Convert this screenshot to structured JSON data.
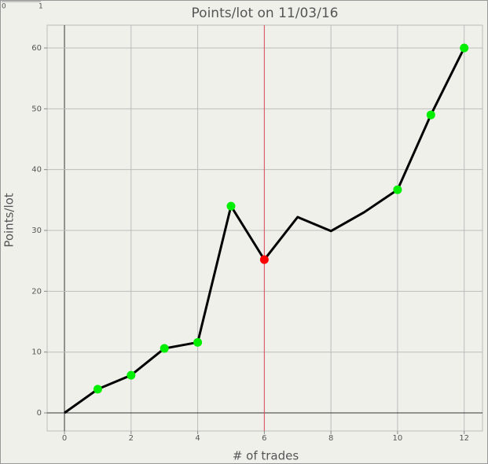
{
  "slider": {
    "labels": [
      "0",
      "1"
    ]
  },
  "chart_data": {
    "type": "line",
    "title": "Points/lot on 11/03/16",
    "x_label": "# of trades",
    "y_label": "Points/lot",
    "x": [
      0,
      1,
      2,
      3,
      4,
      5,
      6,
      7,
      8,
      9,
      10,
      11,
      12
    ],
    "series": [
      {
        "name": "Points/lot",
        "color": "#000000",
        "values": [
          0,
          3.9,
          6.2,
          10.6,
          11.6,
          34,
          25.2,
          32.2,
          29.9,
          33,
          36.7,
          49,
          60
        ],
        "marker_colors": [
          null,
          "#00ee00",
          "#00ee00",
          "#00ee00",
          "#00ee00",
          "#00ee00",
          "#ff0000",
          null,
          null,
          null,
          "#00ee00",
          "#00ee00",
          "#00ee00"
        ]
      }
    ],
    "xlim": [
      -0.52,
      12.55
    ],
    "ylim": [
      -2.97,
      63.75
    ],
    "xticks": [
      0,
      2,
      4,
      6,
      8,
      10,
      12
    ],
    "yticks": [
      0,
      10,
      20,
      30,
      40,
      50,
      60
    ],
    "grid": true,
    "vline": {
      "x": 6,
      "color": "#e05060"
    }
  }
}
